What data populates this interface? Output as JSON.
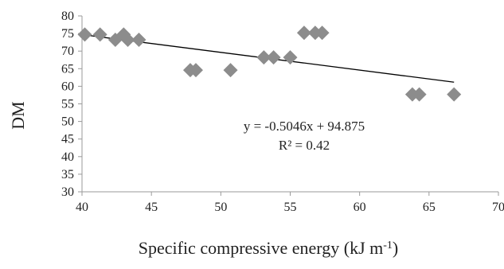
{
  "chart_data": {
    "type": "scatter",
    "title": "",
    "xlabel": "Specific compressive energy (kJ m",
    "xlabel_superscript": "-1",
    "xlabel_suffix": ")",
    "ylabel": "DM",
    "xlim": [
      40,
      70
    ],
    "ylim": [
      30,
      80
    ],
    "x_ticks": [
      40,
      45,
      50,
      55,
      60,
      65,
      70
    ],
    "y_ticks": [
      30,
      35,
      40,
      45,
      50,
      55,
      60,
      65,
      70,
      75,
      80
    ],
    "grid": false,
    "legend": "none",
    "marker": "diamond",
    "marker_color": "#8c8c8c",
    "trendline_color": "#000000",
    "axis_color": "#9a9a9a",
    "series": [
      {
        "values": [
          {
            "x": 40.2,
            "y": 74.7
          },
          {
            "x": 41.3,
            "y": 74.7
          },
          {
            "x": 42.4,
            "y": 73.2
          },
          {
            "x": 43.0,
            "y": 74.7
          },
          {
            "x": 43.3,
            "y": 73.2
          },
          {
            "x": 44.1,
            "y": 73.2
          },
          {
            "x": 47.8,
            "y": 64.6
          },
          {
            "x": 48.2,
            "y": 64.6
          },
          {
            "x": 50.7,
            "y": 64.6
          },
          {
            "x": 53.1,
            "y": 68.2
          },
          {
            "x": 53.8,
            "y": 68.2
          },
          {
            "x": 55.0,
            "y": 68.2
          },
          {
            "x": 56.0,
            "y": 75.2
          },
          {
            "x": 56.8,
            "y": 75.2
          },
          {
            "x": 57.3,
            "y": 75.2
          },
          {
            "x": 63.8,
            "y": 57.7
          },
          {
            "x": 64.3,
            "y": 57.7
          },
          {
            "x": 66.8,
            "y": 57.7
          }
        ]
      }
    ],
    "trendline": {
      "slope": -0.5046,
      "intercept": 94.875,
      "x_range": [
        40.2,
        66.8
      ],
      "equation_label": "y = -0.5046x + 94.875",
      "r2_label": "R² = 0.42"
    }
  }
}
